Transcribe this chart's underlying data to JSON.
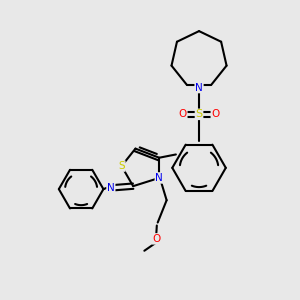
{
  "bg_color": "#e8e8e8",
  "atom_colors": {
    "C": "#000000",
    "N": "#0000ee",
    "S": "#cccc00",
    "O": "#ff0000"
  },
  "bond_color": "#000000",
  "bond_width": 1.5
}
